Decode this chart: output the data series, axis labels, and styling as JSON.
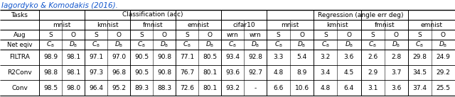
{
  "title_text": "Iagordyko & Komodakis (2016).",
  "col_header_1": "Classification (acc)",
  "col_header_2": "Regression (angle err deg)",
  "clf_datasets": [
    "mnist",
    "kmnist",
    "fmnist",
    "emnist",
    "cifar10"
  ],
  "reg_datasets": [
    "mnist",
    "kmnist",
    "fmnist",
    "emnist"
  ],
  "aug_clf": [
    [
      "S",
      "O"
    ],
    [
      "S",
      "O"
    ],
    [
      "S",
      "O"
    ],
    [
      "S",
      "O"
    ],
    [
      "wrn",
      "wrn"
    ]
  ],
  "aug_reg": [
    [
      "S",
      "O"
    ],
    [
      "S",
      "O"
    ],
    [
      "S",
      "O"
    ],
    [
      "S",
      "O"
    ]
  ],
  "rows": [
    {
      "name": "FILTRA",
      "clf": [
        "98.9",
        "98.1",
        "97.1",
        "97.0",
        "90.5",
        "90.8",
        "77.1",
        "80.5",
        "93.4",
        "92.8"
      ],
      "reg": [
        "3.3",
        "5.4",
        "3.2",
        "3.6",
        "2.6",
        "2.8",
        "29.8",
        "24.9"
      ]
    },
    {
      "name": "R2Conv",
      "clf": [
        "98.8",
        "98.1",
        "97.3",
        "96.8",
        "90.5",
        "90.8",
        "76.7",
        "80.1",
        "93.6",
        "92.7"
      ],
      "reg": [
        "4.8",
        "8.9",
        "3.4",
        "4.5",
        "2.9",
        "3.7",
        "34.5",
        "29.2"
      ]
    },
    {
      "name": "Conv",
      "clf": [
        "98.5",
        "98.0",
        "96.4",
        "95.2",
        "89.3",
        "88.3",
        "72.6",
        "80.1",
        "93.2",
        "-"
      ],
      "reg": [
        "6.6",
        "10.6",
        "4.8",
        "6.4",
        "3.1",
        "3.6",
        "37.4",
        "25.5"
      ]
    }
  ],
  "bg_color": "#ffffff",
  "line_color": "#000000",
  "title_color": "#1155cc",
  "font_family": "DejaVu Sans",
  "fs_title": 7.5,
  "fs": 6.5
}
